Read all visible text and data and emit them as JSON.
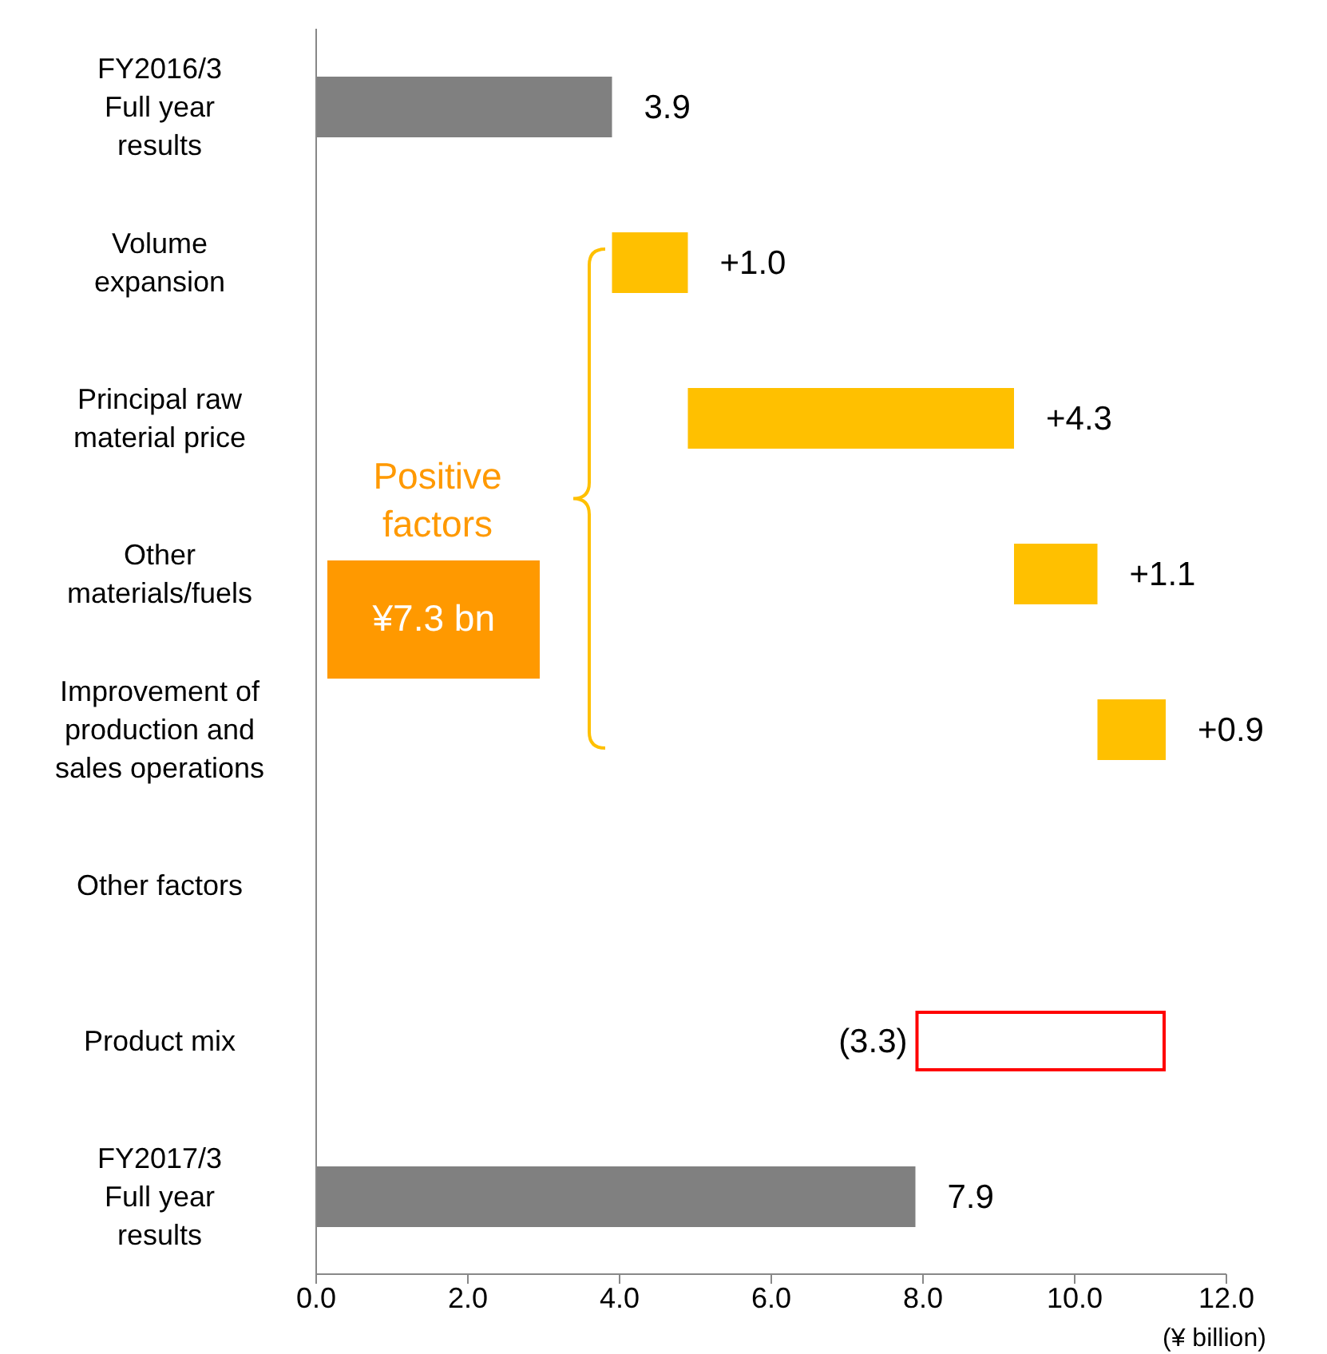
{
  "chart_data": {
    "type": "bar",
    "orientation": "horizontal",
    "categories": [
      "FY2016/3\nFull year\nresults",
      "Volume\nexpansion",
      "Principal raw\nmaterial price",
      "Other\nmaterials/fuels",
      "Improvement of\nproduction and\nsales operations",
      "Other factors",
      "Product mix",
      "FY2017/3\nFull year\nresults"
    ],
    "values": [
      3.9,
      1.0,
      4.3,
      1.1,
      0.9,
      null,
      -3.3,
      7.9
    ],
    "base": [
      0,
      3.9,
      4.9,
      9.2,
      10.3,
      null,
      11.2,
      0
    ],
    "colors": [
      "#808080",
      "#ffc000",
      "#ffc000",
      "#ffc000",
      "#ffc000",
      null,
      "#ff0000",
      "#808080"
    ],
    "value_labels": [
      "3.9",
      "+1.0",
      "+4.3",
      "+1.1",
      "+0.9",
      null,
      "(3.3)",
      "7.9"
    ],
    "xlabel": "(¥ billion)",
    "xlim": [
      0,
      12
    ],
    "xticks": [
      {
        "value": 0,
        "label": "0.0"
      },
      {
        "value": 2,
        "label": "2.0"
      },
      {
        "value": 4,
        "label": "4.0"
      },
      {
        "value": 6,
        "label": "6.0"
      },
      {
        "value": 8,
        "label": "8.0"
      },
      {
        "value": 10,
        "label": "10.0"
      },
      {
        "value": 12,
        "label": "12.0"
      }
    ],
    "annotations": [
      "Positive factors",
      "¥7.3 bn"
    ],
    "grid": false,
    "legend": false
  }
}
